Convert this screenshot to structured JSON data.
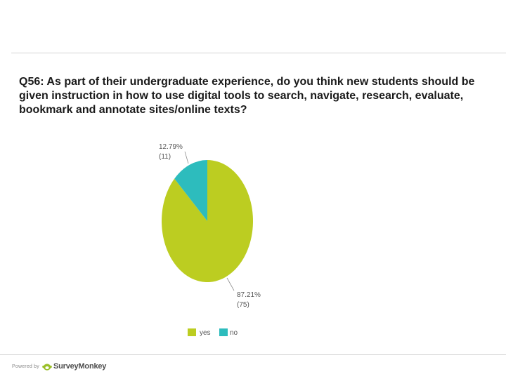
{
  "question": "Q56: As part of their undergraduate experience, do you think new students should be given instruction in how to use digital tools to search, navigate, research, evaluate, bookmark and annotate sites/online texts?",
  "footer": {
    "powered_by": "Powered by",
    "brand": "SurveyMonkey"
  },
  "colors": {
    "yes": "#bccd21",
    "no": "#2dbcbd",
    "leader": "#8f8f8f",
    "label": "#555555"
  },
  "chart_data": {
    "type": "pie",
    "title": "",
    "slices": [
      {
        "name": "yes",
        "percent_label": "87.21%",
        "count_label": "(75)",
        "count": 75
      },
      {
        "name": "no",
        "percent_label": "12.79%",
        "count_label": "(11)",
        "count": 11
      }
    ],
    "legend": [
      "yes",
      "no"
    ],
    "legend_position": "bottom"
  }
}
